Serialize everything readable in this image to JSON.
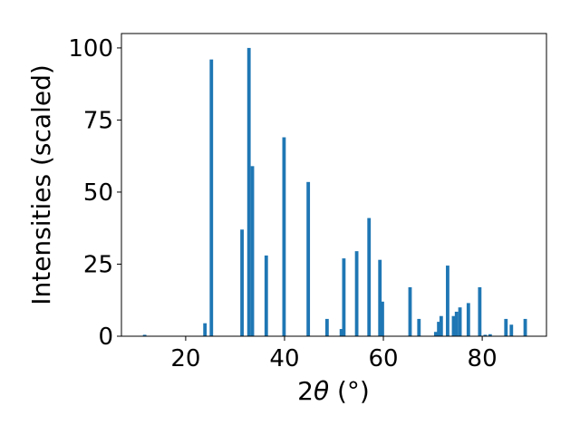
{
  "chart_data": {
    "type": "bar",
    "xlabel_prefix": "2",
    "xlabel_symbol": "θ",
    "xlabel_suffix": " (°)",
    "ylabel": "Intensities (scaled)",
    "xlim": [
      7,
      93
    ],
    "ylim": [
      0,
      105
    ],
    "x_ticks": [
      20,
      40,
      60,
      80
    ],
    "y_ticks": [
      0,
      25,
      50,
      75,
      100
    ],
    "bar_color": "#1f77b4",
    "bar_width": 0.7,
    "grid": false,
    "x": [
      11.7,
      23.9,
      25.2,
      31.4,
      32.8,
      33.5,
      36.3,
      39.9,
      44.8,
      48.6,
      51.5,
      52.0,
      54.6,
      57.1,
      59.3,
      59.8,
      65.4,
      67.2,
      70.6,
      71.2,
      71.7,
      73.0,
      74.2,
      74.8,
      75.5,
      77.2,
      79.5,
      80.6,
      81.6,
      84.8,
      85.9,
      88.7
    ],
    "values": [
      0.5,
      4.5,
      96,
      37,
      100,
      59,
      28,
      69,
      53.5,
      6,
      2.5,
      27,
      29.5,
      41,
      26.5,
      12,
      17,
      6,
      1.5,
      5,
      7,
      24.5,
      7,
      8.5,
      10,
      11.5,
      17,
      0.5,
      0.7,
      6,
      4,
      6
    ]
  }
}
